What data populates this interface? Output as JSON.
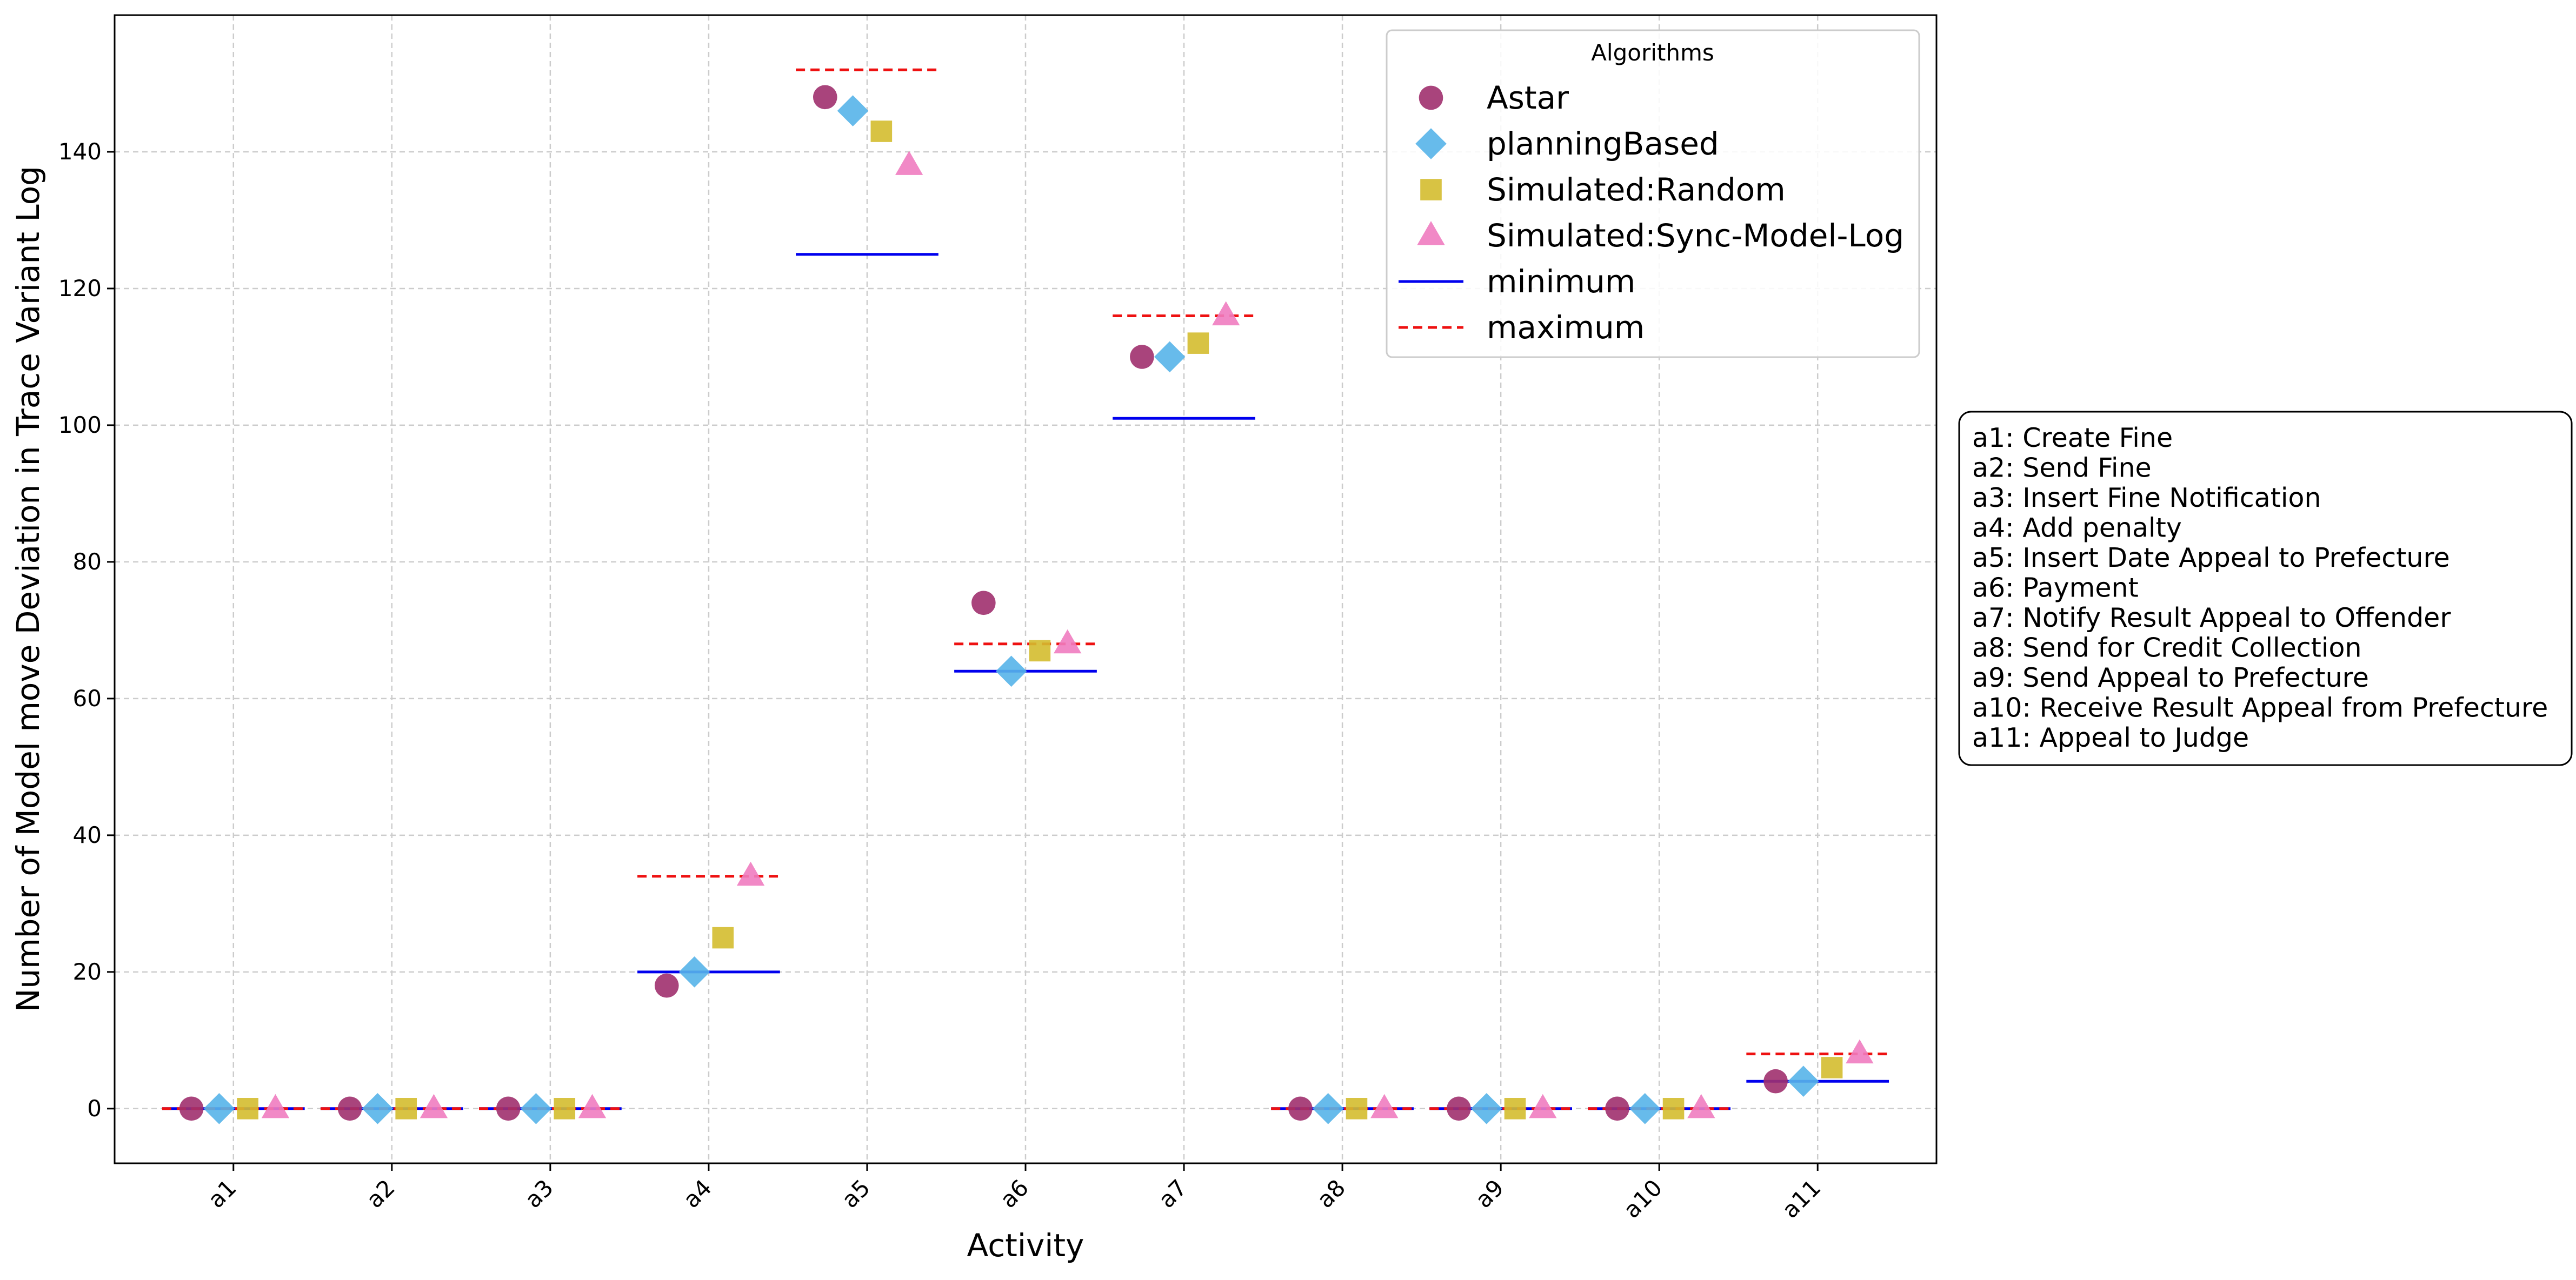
{
  "chart_data": {
    "type": "scatter",
    "xlabel": "Activity",
    "ylabel": "Number of Model move Deviation  in Trace Variant Log",
    "ylim": [
      -8,
      160
    ],
    "yticks": [
      0,
      20,
      40,
      60,
      80,
      100,
      120,
      140
    ],
    "grid": true,
    "categories": [
      "a1",
      "a2",
      "a3",
      "a4",
      "a5",
      "a6",
      "a7",
      "a8",
      "a9",
      "a10",
      "a11"
    ],
    "series": [
      {
        "name": "Astar",
        "marker": "circle",
        "color": "#a0306e",
        "values": [
          0,
          0,
          0,
          18,
          148,
          74,
          110,
          0,
          0,
          0,
          4
        ]
      },
      {
        "name": "planningBased",
        "marker": "diamond",
        "color": "#56b4e9",
        "values": [
          0,
          0,
          0,
          20,
          146,
          64,
          110,
          0,
          0,
          0,
          4
        ]
      },
      {
        "name": "Simulated:Random",
        "marker": "square",
        "color": "#d4bc2f",
        "values": [
          0,
          0,
          0,
          25,
          143,
          67,
          112,
          0,
          0,
          0,
          6
        ]
      },
      {
        "name": "Simulated:Sync-Model-Log",
        "marker": "triangle",
        "color": "#f07cc0",
        "values": [
          0,
          0,
          0,
          34,
          138,
          68,
          116,
          0,
          0,
          0,
          8
        ]
      }
    ],
    "minimum": {
      "name": "minimum",
      "color": "#0000ee",
      "values": [
        0,
        0,
        0,
        20,
        125,
        64,
        101,
        0,
        0,
        0,
        4
      ]
    },
    "maximum": {
      "name": "maximum",
      "color": "#ee1111",
      "values": [
        0,
        0,
        0,
        34,
        152,
        68,
        116,
        0,
        0,
        0,
        8
      ]
    },
    "legend": {
      "title": "Algorithms",
      "placement": "top-right"
    },
    "activity_key": [
      "a1: Create Fine",
      "a2: Send Fine",
      "a3: Insert Fine Notification",
      "a4: Add penalty",
      "a5: Insert Date Appeal to Prefecture",
      "a6: Payment",
      "a7: Notify Result Appeal to Offender",
      "a8: Send for Credit Collection",
      "a9: Send Appeal to Prefecture",
      "a10: Receive Result Appeal from Prefecture",
      "a11: Appeal to Judge"
    ]
  }
}
